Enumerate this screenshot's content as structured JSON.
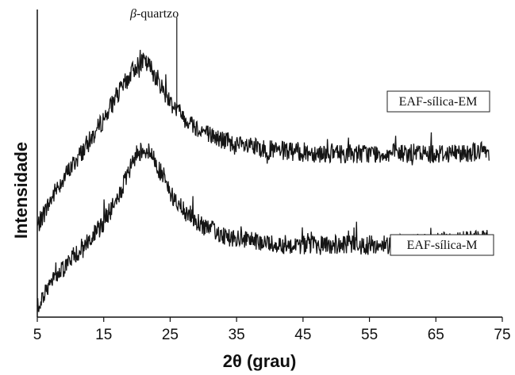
{
  "chart_data": {
    "type": "line",
    "xlabel": "2θ (grau)",
    "ylabel": "Intensidade",
    "xlim": [
      5,
      75
    ],
    "xticks": [
      "5",
      "15",
      "25",
      "35",
      "45",
      "55",
      "65",
      "75"
    ],
    "annotations": [
      {
        "text_prefix": "β",
        "text": "-quartzo",
        "x": 26
      }
    ],
    "series": [
      {
        "name": "EAF-sílica-EM",
        "x": [
          5,
          8,
          11,
          14,
          17,
          19,
          20,
          21,
          22,
          23,
          24,
          25,
          26,
          27,
          29,
          31,
          33,
          35,
          38,
          41,
          45,
          50,
          55,
          60,
          65,
          70,
          73
        ],
        "y": [
          0.3,
          0.45,
          0.56,
          0.67,
          0.8,
          0.88,
          0.92,
          0.93,
          0.91,
          0.87,
          0.82,
          0.78,
          0.75,
          0.72,
          0.68,
          0.65,
          0.63,
          0.61,
          0.6,
          0.59,
          0.585,
          0.58,
          0.58,
          0.58,
          0.58,
          0.585,
          0.59
        ],
        "spike": {
          "x": 26,
          "y": 1.1
        }
      },
      {
        "name": "EAF-sílica-M",
        "x": [
          5,
          8,
          11,
          14,
          17,
          19,
          20,
          21,
          22,
          23,
          24,
          25,
          26,
          27,
          29,
          31,
          33,
          35,
          38,
          41,
          45,
          50,
          55,
          60,
          65,
          70,
          73
        ],
        "y": [
          0.0,
          0.12,
          0.2,
          0.28,
          0.4,
          0.52,
          0.58,
          0.6,
          0.58,
          0.54,
          0.48,
          0.43,
          0.39,
          0.36,
          0.32,
          0.29,
          0.27,
          0.25,
          0.24,
          0.235,
          0.23,
          0.23,
          0.23,
          0.235,
          0.24,
          0.25,
          0.255
        ]
      }
    ],
    "grid": false
  }
}
